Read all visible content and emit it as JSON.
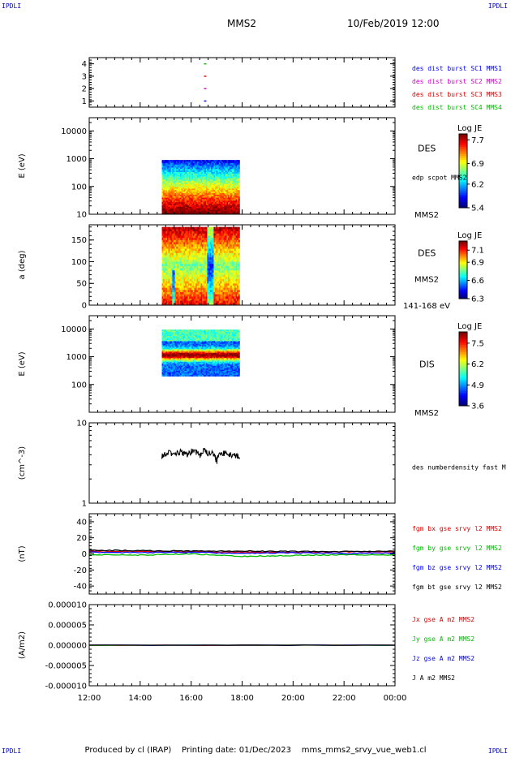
{
  "header": {
    "corner_label": "IPDLI",
    "spacecraft": "MMS2",
    "date": "10/Feb/2019 12:00"
  },
  "footer": {
    "produced_by": "Produced by cl (IRAP)",
    "printing_date": "Printing date: 01/Dec/2023",
    "filename": "mms_mms2_srvy_vue_web1.cl"
  },
  "x_axis": {
    "ticks": [
      "12:00",
      "14:00",
      "16:00",
      "18:00",
      "20:00",
      "22:00",
      "00:00"
    ],
    "hours": [
      12,
      14,
      16,
      18,
      20,
      22,
      24
    ],
    "range": [
      12,
      24
    ]
  },
  "chart_data": [
    {
      "type": "scatter",
      "panel": "burst coverage",
      "ylim": [
        0.5,
        4.5
      ],
      "yticks": [
        "1",
        "2",
        "3",
        "4"
      ],
      "ytick_values": [
        1,
        2,
        3,
        4
      ],
      "series": [
        {
          "name": "des dist burst SC1 MMS1",
          "color": "#0000ff",
          "x": [
            16.55
          ],
          "y": [
            1
          ]
        },
        {
          "name": "des dist burst SC2 MMS2",
          "color": "#cc00cc",
          "x": [
            16.55
          ],
          "y": [
            2
          ]
        },
        {
          "name": "des dist burst SC3 MMS3",
          "color": "#dd0000",
          "x": [
            16.55
          ],
          "y": [
            3
          ]
        },
        {
          "name": "des dist burst SC4 MMS4",
          "color": "#00bb00",
          "x": [
            16.55
          ],
          "y": [
            4
          ]
        }
      ]
    },
    {
      "type": "heatmap",
      "panel": "DES energy spectrogram",
      "ylabel": "E (eV)",
      "yscale": "log",
      "ylim": [
        10,
        30000
      ],
      "yticks": [
        "10",
        "100",
        "1000",
        "10000"
      ],
      "ytick_values": [
        10,
        100,
        1000,
        10000
      ],
      "x_range": [
        14.85,
        17.9
      ],
      "y_range": [
        10,
        900
      ],
      "labels": [
        "DES",
        "edp scpot MMS2",
        "MMS2"
      ],
      "colorbar": {
        "title": "Log JE",
        "ticks": [
          "7.7",
          "6.9",
          "6.2",
          "5.4"
        ],
        "tick_values": [
          7.7,
          6.9,
          6.2,
          5.4
        ],
        "range": [
          5.4,
          7.9
        ]
      }
    },
    {
      "type": "heatmap",
      "panel": "DES pitch angle",
      "ylabel": "a (deg)",
      "ylim": [
        0,
        185
      ],
      "yticks": [
        "0",
        "50",
        "100",
        "150"
      ],
      "ytick_values": [
        0,
        50,
        100,
        150
      ],
      "x_range": [
        14.85,
        17.9
      ],
      "y_range": [
        0,
        180
      ],
      "labels": [
        "DES",
        "MMS2",
        "141-168 eV"
      ],
      "colorbar": {
        "title": "Log JE",
        "ticks": [
          "7.1",
          "6.9",
          "6.6",
          "6.3"
        ],
        "tick_values": [
          7.1,
          6.9,
          6.6,
          6.3
        ],
        "range": [
          6.3,
          7.25
        ]
      }
    },
    {
      "type": "heatmap",
      "panel": "DIS energy spectrogram",
      "ylabel": "E (eV)",
      "yscale": "log",
      "ylim": [
        10,
        30000
      ],
      "yticks": [
        "100",
        "1000",
        "10000"
      ],
      "ytick_values": [
        100,
        1000,
        10000
      ],
      "x_range": [
        14.85,
        17.9
      ],
      "y_range": [
        200,
        9500
      ],
      "labels": [
        "DIS",
        "MMS2"
      ],
      "colorbar": {
        "title": "Log JE",
        "ticks": [
          "7.5",
          "6.2",
          "4.9",
          "3.6"
        ],
        "tick_values": [
          7.5,
          6.2,
          4.9,
          3.6
        ],
        "range": [
          3.6,
          8.2
        ]
      }
    },
    {
      "type": "line",
      "panel": "density",
      "ylabel": "(cm^-3)",
      "yscale": "log",
      "ylim": [
        1,
        10
      ],
      "yticks": [
        "1",
        "10"
      ],
      "ytick_values": [
        1,
        10
      ],
      "series": [
        {
          "name": "des numberdensity fast M",
          "color": "#000000",
          "x": [
            14.85,
            15.0,
            15.15,
            15.3,
            15.45,
            15.6,
            15.75,
            15.9,
            16.05,
            16.2,
            16.35,
            16.5,
            16.65,
            16.8,
            16.95,
            17.0,
            17.05,
            17.2,
            17.35,
            17.5,
            17.65,
            17.8,
            17.9
          ],
          "y": [
            3.9,
            4.1,
            4.3,
            4.0,
            4.2,
            4.4,
            4.0,
            4.1,
            4.5,
            4.2,
            4.0,
            4.6,
            4.1,
            4.2,
            3.8,
            3.2,
            3.9,
            4.3,
            4.1,
            4.0,
            3.9,
            3.9,
            3.7
          ]
        }
      ]
    },
    {
      "type": "line",
      "panel": "magnetic field",
      "ylabel": "(nT)",
      "ylim": [
        -50,
        50
      ],
      "yticks": [
        "-40",
        "-20",
        "0",
        "20",
        "40"
      ],
      "ytick_values": [
        -40,
        -20,
        0,
        20,
        40
      ],
      "series": [
        {
          "name": "fgm bx gse srvy l2 MMS2",
          "color": "#dd0000",
          "x": [
            12,
            14,
            16,
            18,
            20,
            22,
            24
          ],
          "y": [
            3.5,
            3.0,
            2.5,
            2.0,
            2.0,
            2.5,
            3.0
          ]
        },
        {
          "name": "fgm by gse srvy l2 MMS2",
          "color": "#00bb00",
          "x": [
            12,
            14,
            16,
            18,
            20,
            22,
            24
          ],
          "y": [
            -1.0,
            -1.5,
            0.0,
            -3.0,
            -2.0,
            -1.0,
            -1.5
          ]
        },
        {
          "name": "fgm bz gse srvy l2 MMS2",
          "color": "#0000ff",
          "x": [
            12,
            14,
            16,
            18,
            20,
            22,
            24
          ],
          "y": [
            2.0,
            1.5,
            2.0,
            0.5,
            1.5,
            0.5,
            1.0
          ]
        },
        {
          "name": "fgm bt gse srvy l2 MMS2",
          "color": "#000000",
          "x": [
            12,
            14,
            16,
            18,
            20,
            22,
            24
          ],
          "y": [
            4.5,
            4.0,
            3.5,
            3.5,
            3.0,
            3.0,
            3.5
          ]
        }
      ]
    },
    {
      "type": "line",
      "panel": "current density",
      "ylabel": "(A/m2)",
      "ylim": [
        -1e-05,
        1e-05
      ],
      "yticks": [
        "-0.000010",
        "-0.000005",
        "0.000000",
        "0.000005",
        "0.000010"
      ],
      "ytick_values": [
        -1e-05,
        -5e-06,
        0,
        5e-06,
        1e-05
      ],
      "series": [
        {
          "name": "Jx gse A m2 MMS2",
          "color": "#dd0000",
          "x": [
            12,
            24
          ],
          "y": [
            0,
            0
          ]
        },
        {
          "name": "Jy gse A m2 MMS2",
          "color": "#00bb00",
          "x": [
            12,
            24
          ],
          "y": [
            0,
            0
          ]
        },
        {
          "name": "Jz gse A m2 MMS2",
          "color": "#0000ff",
          "x": [
            12,
            24
          ],
          "y": [
            0,
            0
          ]
        },
        {
          "name": "J A m2 MMS2",
          "color": "#000000",
          "x": [
            12,
            24
          ],
          "y": [
            0,
            0
          ]
        }
      ]
    }
  ]
}
